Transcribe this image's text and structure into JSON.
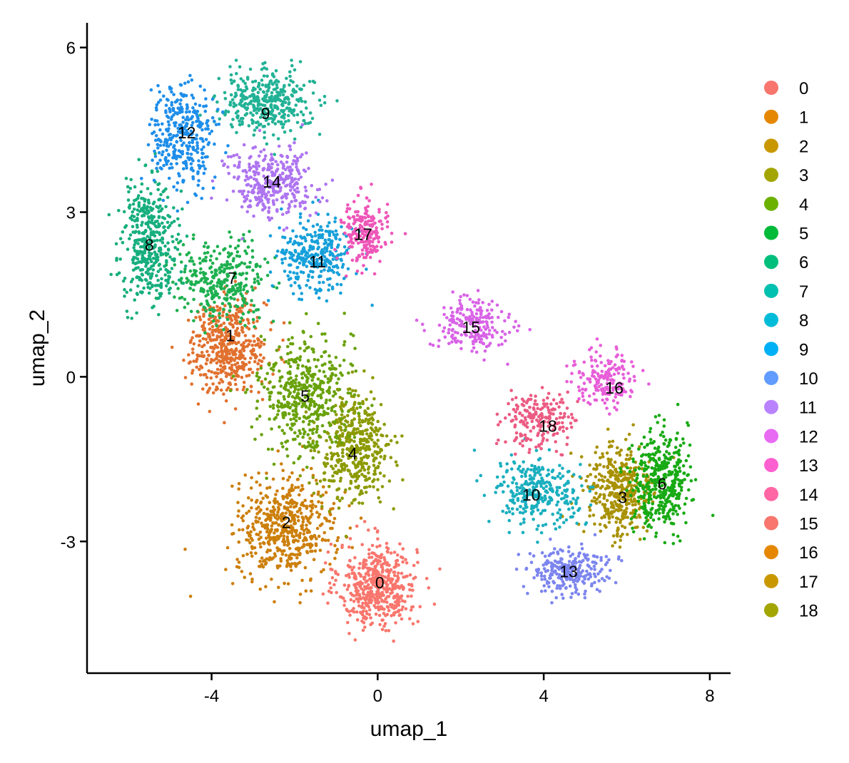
{
  "chart_data": {
    "type": "scatter",
    "xlabel": "umap_1",
    "ylabel": "umap_2",
    "xlim": [
      -7,
      8.5
    ],
    "ylim": [
      -5.4,
      6.45
    ],
    "x_ticks": [
      -4,
      0,
      4,
      8
    ],
    "y_ticks": [
      -3,
      0,
      3,
      6
    ],
    "x_tick_labels": [
      "-4",
      "0",
      "4",
      "8"
    ],
    "y_tick_labels": [
      "-3",
      "0",
      "3",
      "6"
    ],
    "grid": false,
    "legend_position": "right",
    "legend": [
      {
        "label": "0",
        "color": "#F8766D"
      },
      {
        "label": "1",
        "color": "#E58700"
      },
      {
        "label": "2",
        "color": "#C99800"
      },
      {
        "label": "3",
        "color": "#A3A500"
      },
      {
        "label": "4",
        "color": "#6BB100"
      },
      {
        "label": "5",
        "color": "#00BA38"
      },
      {
        "label": "6",
        "color": "#00BF7D"
      },
      {
        "label": "7",
        "color": "#00C0AF"
      },
      {
        "label": "8",
        "color": "#00BCD8"
      },
      {
        "label": "9",
        "color": "#00B0F6"
      },
      {
        "label": "10",
        "color": "#619CFF"
      },
      {
        "label": "11",
        "color": "#B983FF"
      },
      {
        "label": "12",
        "color": "#E76BF3"
      },
      {
        "label": "13",
        "color": "#FD61D1"
      },
      {
        "label": "14",
        "color": "#FF67A4"
      },
      {
        "label": "15",
        "color": "#F8766D"
      },
      {
        "label": "16",
        "color": "#E58700"
      },
      {
        "label": "17",
        "color": "#C99800"
      },
      {
        "label": "18",
        "color": "#A3A500"
      }
    ],
    "clusters": [
      {
        "label": "0",
        "color": "#F8766D",
        "cx": 0.0,
        "cy": -3.8,
        "sx": 0.75,
        "sy": 0.62,
        "n": 520
      },
      {
        "label": "1",
        "color": "#E1702E",
        "cx": -3.6,
        "cy": 0.55,
        "sx": 0.75,
        "sy": 0.68,
        "n": 480
      },
      {
        "label": "2",
        "color": "#CC7F0A",
        "cx": -2.2,
        "cy": -2.75,
        "sx": 0.95,
        "sy": 0.72,
        "n": 520
      },
      {
        "label": "3",
        "color": "#A89100",
        "cx": 5.8,
        "cy": -2.1,
        "sx": 0.68,
        "sy": 0.72,
        "n": 380
      },
      {
        "label": "4",
        "color": "#8C9A00",
        "cx": -0.55,
        "cy": -1.3,
        "sx": 0.7,
        "sy": 0.8,
        "n": 440
      },
      {
        "label": "5",
        "color": "#69A20A",
        "cx": -1.8,
        "cy": -0.3,
        "sx": 0.85,
        "sy": 0.85,
        "n": 460
      },
      {
        "label": "6",
        "color": "#18AA14",
        "cx": 6.8,
        "cy": -1.9,
        "sx": 0.55,
        "sy": 0.75,
        "n": 400
      },
      {
        "label": "7",
        "color": "#1EB050",
        "cx": -3.7,
        "cy": 1.75,
        "sx": 0.9,
        "sy": 0.55,
        "n": 340
      },
      {
        "label": "8",
        "color": "#16AE7D",
        "cx": -5.5,
        "cy": 2.5,
        "sx": 0.55,
        "sy": 0.85,
        "n": 420
      },
      {
        "label": "9",
        "color": "#22B296",
        "cx": -2.7,
        "cy": 5.0,
        "sx": 0.9,
        "sy": 0.45,
        "n": 380
      },
      {
        "label": "10",
        "color": "#1AAFBF",
        "cx": 3.9,
        "cy": -2.1,
        "sx": 0.85,
        "sy": 0.5,
        "n": 300
      },
      {
        "label": "11",
        "color": "#16A0DA",
        "cx": -1.5,
        "cy": 2.2,
        "sx": 0.7,
        "sy": 0.55,
        "n": 320
      },
      {
        "label": "12",
        "color": "#1E8EEA",
        "cx": -4.7,
        "cy": 4.4,
        "sx": 0.6,
        "sy": 0.75,
        "n": 340
      },
      {
        "label": "13",
        "color": "#7C85EE",
        "cx": 4.6,
        "cy": -3.55,
        "sx": 0.8,
        "sy": 0.35,
        "n": 260
      },
      {
        "label": "14",
        "color": "#AE74F0",
        "cx": -2.6,
        "cy": 3.5,
        "sx": 0.85,
        "sy": 0.5,
        "n": 340
      },
      {
        "label": "15",
        "color": "#D863E6",
        "cx": 2.3,
        "cy": 0.95,
        "sx": 0.75,
        "sy": 0.42,
        "n": 200
      },
      {
        "label": "16",
        "color": "#E75ED8",
        "cx": 5.5,
        "cy": -0.05,
        "sx": 0.6,
        "sy": 0.4,
        "n": 180
      },
      {
        "label": "17",
        "color": "#EE56B8",
        "cx": -0.35,
        "cy": 2.6,
        "sx": 0.45,
        "sy": 0.45,
        "n": 200
      },
      {
        "label": "18",
        "color": "#EB5B82",
        "cx": 3.9,
        "cy": -0.8,
        "sx": 0.7,
        "sy": 0.4,
        "n": 200
      }
    ],
    "cluster_labels": [
      {
        "label": "0",
        "x": 0.05,
        "y": -3.75
      },
      {
        "label": "1",
        "x": -3.55,
        "y": 0.75
      },
      {
        "label": "2",
        "x": -2.2,
        "y": -2.65
      },
      {
        "label": "3",
        "x": 5.9,
        "y": -2.2
      },
      {
        "label": "4",
        "x": -0.6,
        "y": -1.4
      },
      {
        "label": "5",
        "x": -1.75,
        "y": -0.35
      },
      {
        "label": "6",
        "x": 6.85,
        "y": -1.95
      },
      {
        "label": "7",
        "x": -3.5,
        "y": 1.8
      },
      {
        "label": "8",
        "x": -5.5,
        "y": 2.4
      },
      {
        "label": "9",
        "x": -2.7,
        "y": 4.8
      },
      {
        "label": "10",
        "x": 3.7,
        "y": -2.15
      },
      {
        "label": "11",
        "x": -1.45,
        "y": 2.1
      },
      {
        "label": "12",
        "x": -4.6,
        "y": 4.45
      },
      {
        "label": "13",
        "x": 4.6,
        "y": -3.55
      },
      {
        "label": "14",
        "x": -2.55,
        "y": 3.55
      },
      {
        "label": "15",
        "x": 2.25,
        "y": 0.9
      },
      {
        "label": "16",
        "x": 5.7,
        "y": -0.2
      },
      {
        "label": "17",
        "x": -0.35,
        "y": 2.6
      },
      {
        "label": "18",
        "x": 4.1,
        "y": -0.9
      }
    ]
  }
}
